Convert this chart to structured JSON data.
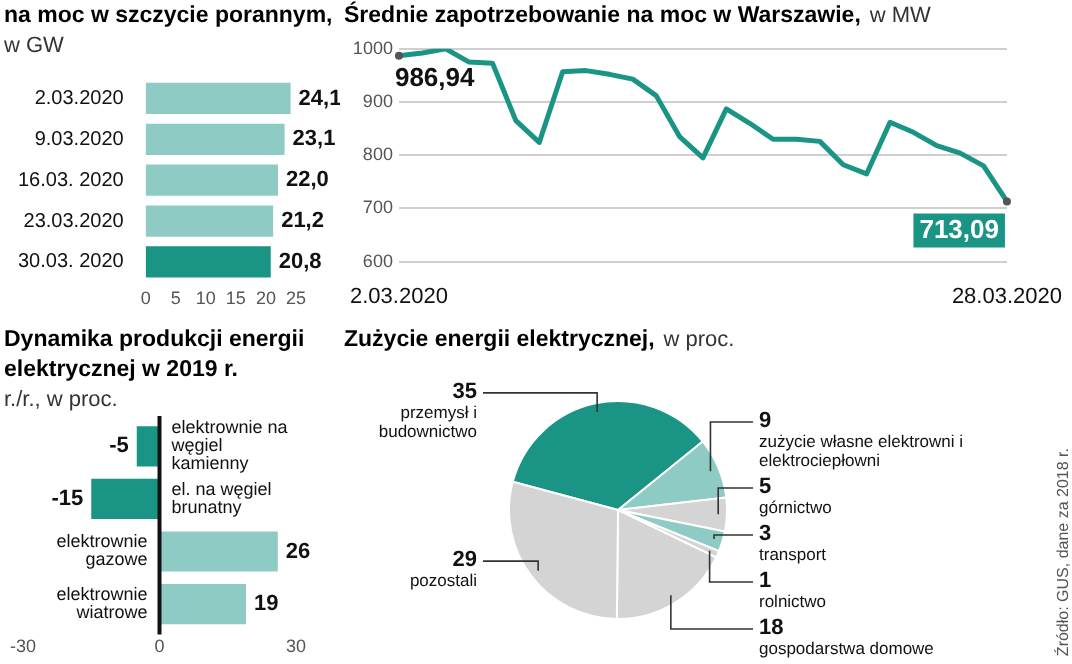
{
  "chart_data": [
    {
      "type": "bar",
      "orientation": "horizontal",
      "title": "na moc w szczycie porannym,",
      "subtitle": "w GW",
      "categories": [
        "2.03.2020",
        "9.03.2020",
        "16.03. 2020",
        "23.03.2020",
        "30.03. 2020"
      ],
      "values": [
        24.1,
        23.1,
        22.0,
        21.2,
        20.8
      ],
      "colors": [
        "#8ecbc4",
        "#8ecbc4",
        "#8ecbc4",
        "#8ecbc4",
        "#1a9485"
      ],
      "value_labels": [
        "24,1",
        "23,1",
        "22,0",
        "21,2",
        "20,8"
      ],
      "xlim": [
        0,
        25
      ],
      "xticks": [
        0,
        5,
        10,
        15,
        20,
        25
      ]
    },
    {
      "type": "line",
      "title": "Średnie zapotrzebowanie na moc w Warszawie,",
      "subtitle": "w MW",
      "categories": [
        "2.03.2020",
        null,
        null,
        null,
        null,
        null,
        null,
        null,
        null,
        null,
        null,
        null,
        null,
        null,
        null,
        null,
        null,
        null,
        null,
        null,
        null,
        null,
        null,
        null,
        null,
        null,
        "28.03.2020"
      ],
      "values": [
        986.94,
        992,
        1000,
        975,
        973,
        865,
        824,
        957,
        959,
        952,
        943,
        912,
        835,
        795,
        887,
        860,
        830,
        830,
        826,
        782,
        765,
        862,
        843,
        818,
        804,
        780,
        713.09
      ],
      "value_labels": [
        "986,94",
        null,
        null,
        null,
        null,
        null,
        null,
        null,
        null,
        null,
        null,
        null,
        null,
        null,
        null,
        null,
        null,
        null,
        null,
        null,
        null,
        null,
        null,
        null,
        null,
        null,
        "713,09"
      ],
      "color": "#1a9485",
      "ylim": [
        600,
        1000
      ],
      "yticks": [
        600,
        700,
        800,
        900,
        1000
      ],
      "grid": "y",
      "marker": "none"
    },
    {
      "type": "bar",
      "orientation": "horizontal",
      "title": "Dynamika produkcji energii elektrycznej w 2019 r.",
      "subtitle": "r./r., w proc.",
      "categories": [
        "elektrownie na węgiel kamienny",
        "el. na węgiel brunatny",
        "elektrownie gazowe",
        "elektrownie wiatrowe"
      ],
      "values": [
        -5,
        -15,
        26,
        19
      ],
      "colors": [
        "#1a9485",
        "#1a9485",
        "#8ecbc4",
        "#8ecbc4"
      ],
      "data_labels": true,
      "xlim": [
        -30,
        30
      ],
      "xticks": [
        -30,
        0,
        30
      ]
    },
    {
      "type": "pie",
      "title": "Zużycie energii elektrycznej,",
      "subtitle": "w proc.",
      "categories": [
        "przemysł i budownictwo",
        "zużycie własne elektrowni i elektrociepłowni",
        "górnictwo",
        "transport",
        "rolnictwo",
        "gospodarstwa domowe",
        "pozostali"
      ],
      "values": [
        35,
        9,
        5,
        3,
        1,
        18,
        29
      ],
      "colors": [
        "#1a9485",
        "#8ecbc4",
        "#d4d4d4",
        "#8ecbc4",
        "#d4d4d4",
        "#d4d4d4",
        "#d4d4d4"
      ],
      "data_labels": true,
      "annotations": [
        "Źródło: GUS, dane za 2018 r."
      ]
    }
  ]
}
